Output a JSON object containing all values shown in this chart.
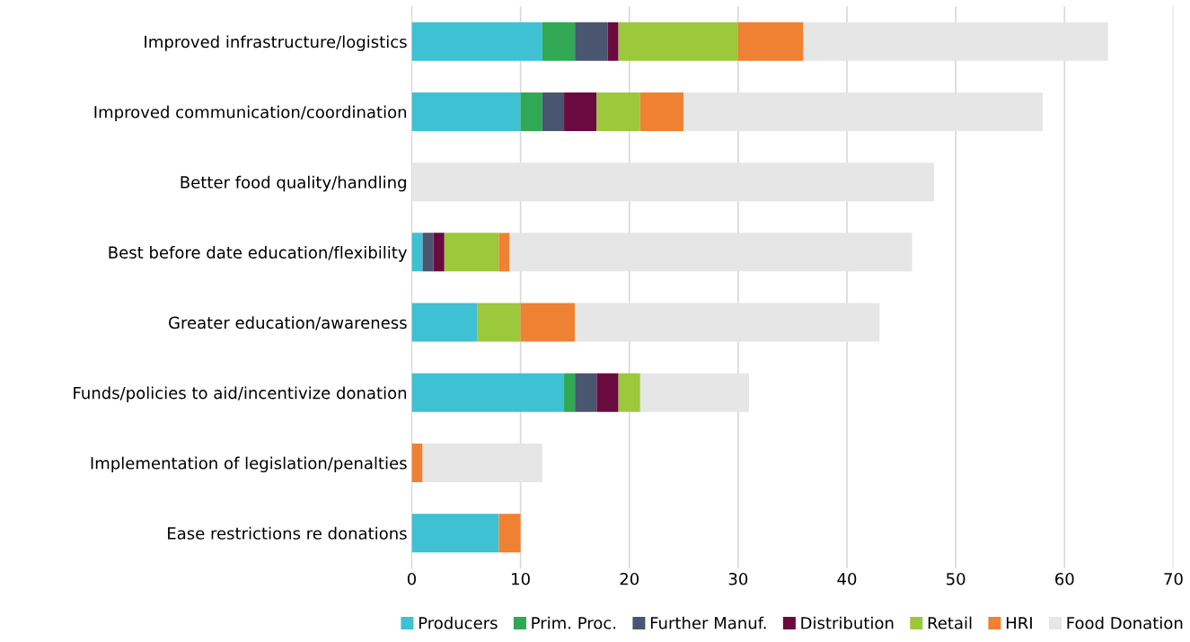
{
  "chart_data": {
    "type": "bar",
    "orientation": "horizontal",
    "stacked": true,
    "categories": [
      "Improved infrastructure/logistics",
      "Improved communication/coordination",
      "Better food quality/handling",
      "Best before date education/flexibility",
      "Greater education/awareness",
      "Funds/policies to aid/incentivize donation",
      "Implementation of legislation/penalties",
      "Ease restrictions re donations"
    ],
    "series": [
      {
        "name": "Producers",
        "color": "#3ec1d3",
        "values": [
          12,
          10,
          0,
          1,
          6,
          14,
          0,
          8
        ]
      },
      {
        "name": "Prim. Proc.",
        "color": "#31a854",
        "values": [
          3,
          2,
          0,
          0,
          0,
          1,
          0,
          0
        ]
      },
      {
        "name": "Further Manuf.",
        "color": "#4a5570",
        "values": [
          3,
          2,
          0,
          1,
          0,
          2,
          0,
          0
        ]
      },
      {
        "name": "Distribution",
        "color": "#6b0a3f",
        "values": [
          1,
          3,
          0,
          1,
          0,
          2,
          0,
          0
        ]
      },
      {
        "name": "Retail",
        "color": "#9cc83c",
        "values": [
          11,
          4,
          0,
          5,
          4,
          2,
          0,
          0
        ]
      },
      {
        "name": "HRI",
        "color": "#ef8133",
        "values": [
          6,
          4,
          0,
          1,
          5,
          0,
          1,
          2
        ]
      },
      {
        "name": "Food Donation",
        "color": "#e6e6e6",
        "values": [
          28,
          33,
          48,
          37,
          28,
          10,
          11,
          0
        ]
      }
    ],
    "xlim": [
      0,
      70
    ],
    "xticks": [
      0,
      10,
      20,
      30,
      40,
      50,
      60,
      70
    ],
    "grid": "x",
    "legend": "bottom"
  }
}
